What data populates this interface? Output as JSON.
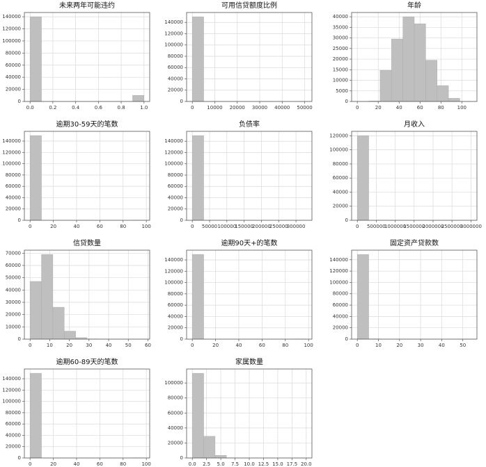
{
  "chart_data": [
    {
      "type": "histogram",
      "title": "未来两年可能违约",
      "bins": [
        0,
        0.1,
        0.2,
        0.3,
        0.4,
        0.5,
        0.6,
        0.7,
        0.8,
        0.9,
        1.0
      ],
      "counts": [
        139974,
        0,
        0,
        0,
        0,
        0,
        0,
        0,
        0,
        10026
      ],
      "color": "#bfbfbf",
      "grid": true,
      "xlim": [
        -0.05,
        1.05
      ],
      "xticks": [
        {
          "value": 0,
          "label": "0.0"
        },
        {
          "value": 0.2,
          "label": "0.2"
        },
        {
          "value": 0.4,
          "label": "0.4"
        },
        {
          "value": 0.6,
          "label": "0.6"
        },
        {
          "value": 0.8,
          "label": "0.8"
        },
        {
          "value": 1,
          "label": "1.0"
        }
      ],
      "ylim": [
        0,
        147000
      ],
      "yticks": [
        0,
        20000,
        40000,
        60000,
        80000,
        100000,
        120000,
        140000
      ]
    },
    {
      "type": "histogram",
      "title": "可用信贷额度比例",
      "bins": [
        0,
        5071,
        10142,
        15212,
        20283,
        25354,
        30425,
        35496,
        40566,
        45637,
        50708
      ],
      "counts": [
        149990,
        5,
        2,
        1,
        0,
        0,
        1,
        0,
        0,
        1
      ],
      "color": "#bfbfbf",
      "grid": true,
      "xlim": [
        -2535,
        53243
      ],
      "xticks": [
        0,
        10000,
        20000,
        30000,
        40000,
        50000
      ],
      "ylim": [
        0,
        157500
      ],
      "yticks": [
        0,
        20000,
        40000,
        60000,
        80000,
        100000,
        120000,
        140000
      ]
    },
    {
      "type": "histogram",
      "title": "年龄",
      "bins": [
        0,
        10.9,
        21.8,
        32.7,
        43.6,
        54.5,
        65.4,
        76.3,
        87.2,
        98.1,
        109
      ],
      "counts": [
        1,
        200,
        14700,
        29500,
        40000,
        36700,
        19500,
        7500,
        1500,
        50
      ],
      "color": "#bfbfbf",
      "grid": true,
      "xlim": [
        -5.45,
        114.45
      ],
      "xticks": [
        0,
        20,
        40,
        60,
        80,
        100
      ],
      "ylim": [
        0,
        42000
      ],
      "yticks": [
        0,
        5000,
        10000,
        15000,
        20000,
        25000,
        30000,
        35000,
        40000
      ]
    },
    {
      "type": "histogram",
      "title": "逾期30-59天的笔数",
      "bins": [
        0,
        9.8,
        19.6,
        29.4,
        39.2,
        49,
        58.8,
        68.6,
        78.4,
        88.2,
        98
      ],
      "counts": [
        149730,
        0,
        0,
        0,
        0,
        0,
        0,
        0,
        0,
        270
      ],
      "color": "#bfbfbf",
      "grid": true,
      "xlim": [
        -4.9,
        102.9
      ],
      "xticks": [
        0,
        20,
        40,
        60,
        80,
        100
      ],
      "ylim": [
        0,
        157200
      ],
      "yticks": [
        0,
        20000,
        40000,
        60000,
        80000,
        100000,
        120000,
        140000
      ]
    },
    {
      "type": "histogram",
      "title": "负债率",
      "bins": [
        0,
        32966,
        65933,
        98899,
        131866,
        164832,
        197799,
        230765,
        263731,
        296698,
        329664
      ],
      "counts": [
        149990,
        5,
        2,
        1,
        1,
        0,
        0,
        0,
        0,
        1
      ],
      "color": "#bfbfbf",
      "grid": true,
      "xlim": [
        -16483,
        346147
      ],
      "xticks": [
        0,
        50000,
        100000,
        150000,
        200000,
        250000,
        300000
      ],
      "ylim": [
        0,
        157500
      ],
      "yticks": [
        0,
        20000,
        40000,
        60000,
        80000,
        100000,
        120000,
        140000
      ]
    },
    {
      "type": "histogram",
      "title": "月收入",
      "bins": [
        0,
        300875,
        601750,
        902625,
        1203500,
        1504375,
        1805250,
        2106125,
        2407000,
        2707875,
        3008750
      ],
      "counts": [
        120260,
        5,
        1,
        1,
        0,
        0,
        0,
        0,
        0,
        1
      ],
      "color": "#bfbfbf",
      "grid": true,
      "xlim": [
        -150438,
        3159188
      ],
      "xticks": [
        0,
        500000,
        1000000,
        1500000,
        2000000,
        2500000,
        3000000
      ],
      "ylim": [
        0,
        126300
      ],
      "yticks": [
        0,
        20000,
        40000,
        60000,
        80000,
        100000,
        120000
      ]
    },
    {
      "type": "histogram",
      "title": "信贷数量",
      "bins": [
        0,
        5.8,
        11.6,
        17.4,
        23.2,
        29,
        34.8,
        40.6,
        46.4,
        52.2,
        58
      ],
      "counts": [
        47000,
        69000,
        26000,
        6500,
        1200,
        200,
        50,
        10,
        3,
        1
      ],
      "color": "#bfbfbf",
      "grid": true,
      "xlim": [
        -2.9,
        60.9
      ],
      "xticks": [
        0,
        10,
        20,
        30,
        40,
        50,
        60
      ],
      "ylim": [
        0,
        72450
      ],
      "yticks": [
        0,
        10000,
        20000,
        30000,
        40000,
        50000,
        60000,
        70000
      ]
    },
    {
      "type": "histogram",
      "title": "逾期90天+的笔数",
      "bins": [
        0,
        9.8,
        19.6,
        29.4,
        39.2,
        49,
        58.8,
        68.6,
        78.4,
        88.2,
        98
      ],
      "counts": [
        149730,
        0,
        0,
        0,
        0,
        0,
        0,
        0,
        0,
        270
      ],
      "color": "#bfbfbf",
      "grid": true,
      "xlim": [
        -4.9,
        102.9
      ],
      "xticks": [
        0,
        20,
        40,
        60,
        80,
        100
      ],
      "ylim": [
        0,
        157200
      ],
      "yticks": [
        0,
        20000,
        40000,
        60000,
        80000,
        100000,
        120000,
        140000
      ]
    },
    {
      "type": "histogram",
      "title": "固定资产贷款数",
      "bins": [
        0,
        5.4,
        10.8,
        16.2,
        21.6,
        27,
        32.4,
        37.8,
        43.2,
        48.6,
        54
      ],
      "counts": [
        149400,
        550,
        30,
        10,
        5,
        2,
        1,
        0,
        0,
        1
      ],
      "color": "#bfbfbf",
      "grid": true,
      "xlim": [
        -2.7,
        56.7
      ],
      "xticks": [
        0,
        10,
        20,
        30,
        40,
        50
      ],
      "ylim": [
        0,
        156900
      ],
      "yticks": [
        0,
        20000,
        40000,
        60000,
        80000,
        100000,
        120000,
        140000
      ]
    },
    {
      "type": "histogram",
      "title": "逾期60-89天的笔数",
      "bins": [
        0,
        9.8,
        19.6,
        29.4,
        39.2,
        49,
        58.8,
        68.6,
        78.4,
        88.2,
        98
      ],
      "counts": [
        149730,
        0,
        0,
        0,
        0,
        0,
        0,
        0,
        0,
        270
      ],
      "color": "#bfbfbf",
      "grid": true,
      "xlim": [
        -4.9,
        102.9
      ],
      "xticks": [
        0,
        20,
        40,
        60,
        80,
        100
      ],
      "ylim": [
        0,
        157200
      ],
      "yticks": [
        0,
        20000,
        40000,
        60000,
        80000,
        100000,
        120000,
        140000
      ]
    },
    {
      "type": "histogram",
      "title": "家属数量",
      "bins": [
        0,
        2,
        4,
        6,
        8,
        10,
        12,
        14,
        16,
        18,
        20
      ],
      "counts": [
        113000,
        29000,
        3500,
        200,
        20,
        0,
        0,
        0,
        0,
        1
      ],
      "color": "#bfbfbf",
      "grid": true,
      "xlim": [
        -1,
        21
      ],
      "xticks": [
        {
          "value": 0,
          "label": "0.0"
        },
        {
          "value": 2.5,
          "label": "2.5"
        },
        {
          "value": 5,
          "label": "5.0"
        },
        {
          "value": 7.5,
          "label": "7.5"
        },
        {
          "value": 10,
          "label": "10.0"
        },
        {
          "value": 12.5,
          "label": "12.5"
        },
        {
          "value": 15,
          "label": "15.0"
        },
        {
          "value": 17.5,
          "label": "17.5"
        },
        {
          "value": 20,
          "label": "20.0"
        }
      ],
      "ylim": [
        0,
        118650
      ],
      "yticks": [
        0,
        20000,
        40000,
        60000,
        80000,
        100000
      ]
    }
  ]
}
